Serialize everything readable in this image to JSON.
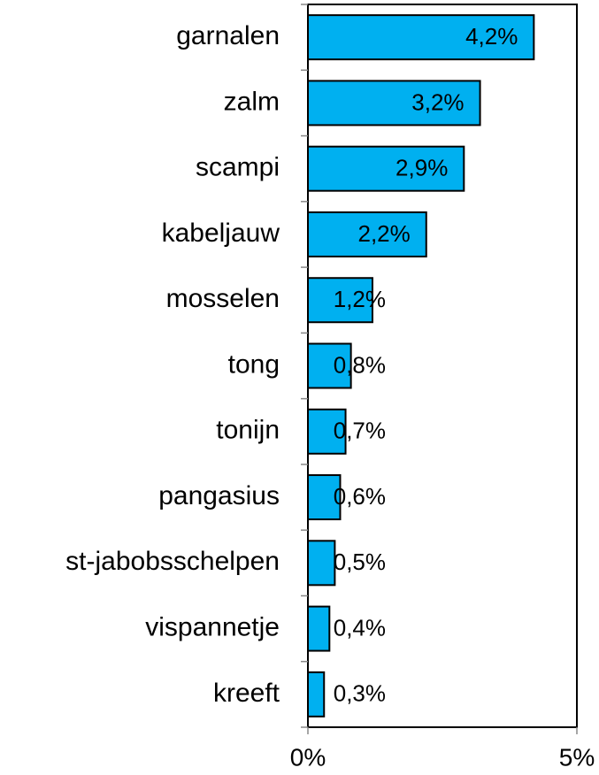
{
  "chart_data": {
    "type": "bar",
    "orientation": "horizontal",
    "categories": [
      "garnalen",
      "zalm",
      "scampi",
      "kabeljauw",
      "mosselen",
      "tong",
      "tonijn",
      "pangasius",
      "st-jabobsschelpen",
      "vispannetje",
      "kreeft"
    ],
    "values": [
      4.2,
      3.2,
      2.9,
      2.2,
      1.2,
      0.8,
      0.7,
      0.6,
      0.5,
      0.4,
      0.3
    ],
    "value_labels": [
      "4,2%",
      "3,2%",
      "2,9%",
      "2,2%",
      "1,2%",
      "0,8%",
      "0,7%",
      "0,6%",
      "0,5%",
      "0,4%",
      "0,3%"
    ],
    "color": "#00b0f0",
    "xlim": [
      0,
      5
    ],
    "xticks": [
      {
        "value": 0,
        "label": "0%"
      },
      {
        "value": 5,
        "label": "5%"
      }
    ]
  }
}
